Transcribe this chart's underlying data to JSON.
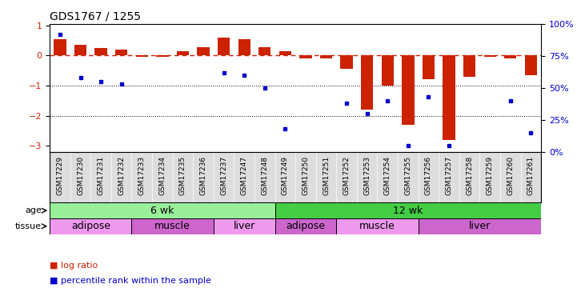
{
  "title": "GDS1767 / 1255",
  "samples": [
    "GSM17229",
    "GSM17230",
    "GSM17231",
    "GSM17232",
    "GSM17233",
    "GSM17234",
    "GSM17235",
    "GSM17236",
    "GSM17237",
    "GSM17247",
    "GSM17248",
    "GSM17249",
    "GSM17250",
    "GSM17251",
    "GSM17252",
    "GSM17253",
    "GSM17254",
    "GSM17255",
    "GSM17256",
    "GSM17257",
    "GSM17258",
    "GSM17259",
    "GSM17260",
    "GSM17261"
  ],
  "log_ratio": [
    0.55,
    0.35,
    0.25,
    0.2,
    -0.05,
    -0.05,
    0.15,
    0.28,
    0.6,
    0.55,
    0.28,
    0.15,
    -0.1,
    -0.1,
    -0.45,
    -1.8,
    -1.0,
    -2.3,
    -0.8,
    -2.8,
    -0.7,
    -0.05,
    -0.1,
    -0.65
  ],
  "percentile_rank": [
    92,
    58,
    55,
    53,
    null,
    null,
    null,
    null,
    62,
    60,
    50,
    18,
    null,
    null,
    38,
    30,
    40,
    5,
    43,
    5,
    null,
    null,
    40,
    15
  ],
  "ylim": [
    -3.2,
    1.05
  ],
  "yticks_left": [
    1,
    0,
    -1,
    -2,
    -3
  ],
  "yticks_right": [
    100,
    75,
    50,
    25,
    0
  ],
  "bar_color": "#cc2200",
  "dot_color": "#0000cc",
  "zero_line_color": "#cc2200",
  "dotted_line_color": "#000000",
  "age_groups": [
    {
      "label": "6 wk",
      "start": 0,
      "end": 11,
      "color": "#99ee99"
    },
    {
      "label": "12 wk",
      "start": 11,
      "end": 24,
      "color": "#44cc44"
    }
  ],
  "tissue_groups": [
    {
      "label": "adipose",
      "start": 0,
      "end": 4,
      "color": "#ee99ee"
    },
    {
      "label": "muscle",
      "start": 4,
      "end": 8,
      "color": "#cc66cc"
    },
    {
      "label": "liver",
      "start": 8,
      "end": 11,
      "color": "#ee99ee"
    },
    {
      "label": "adipose",
      "start": 11,
      "end": 14,
      "color": "#cc66cc"
    },
    {
      "label": "muscle",
      "start": 14,
      "end": 18,
      "color": "#ee99ee"
    },
    {
      "label": "liver",
      "start": 18,
      "end": 24,
      "color": "#cc66cc"
    }
  ],
  "legend_log_ratio": "log ratio",
  "legend_percentile": "percentile rank within the sample",
  "age_label": "age",
  "tissue_label": "tissue",
  "sample_band_color": "#dddddd",
  "label_fontsize": 8,
  "sample_fontsize": 6.5
}
